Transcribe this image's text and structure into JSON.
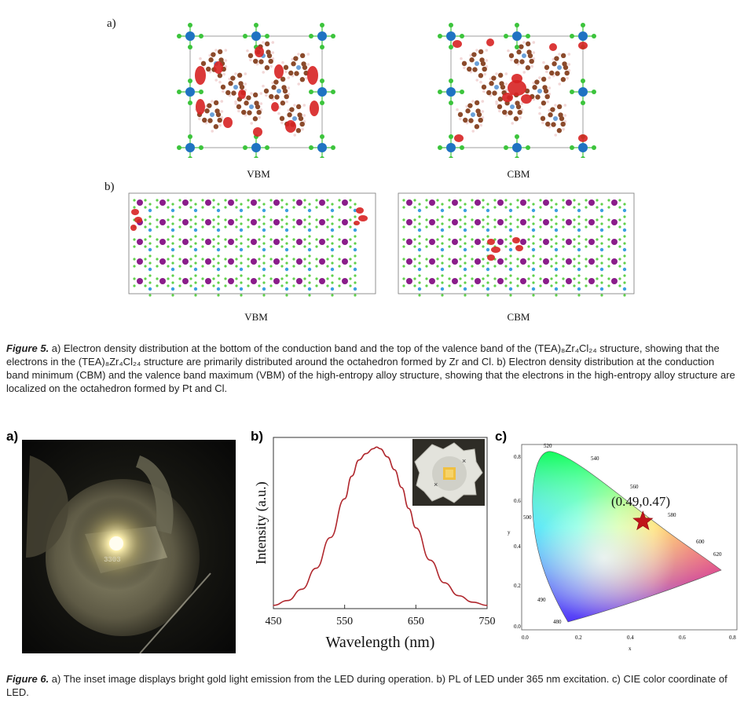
{
  "figure5": {
    "panel_a_label": "a)",
    "panel_b_label": "b)",
    "vbm_label": "VBM",
    "cbm_label": "CBM",
    "caption_prefix": "Figure 5.",
    "caption_text": " a) Electron density distribution at the bottom of the conduction band and the top of the valence band of the (TEA)₈Zr₄Cl₂₄ structure, showing that the electrons in the (TEA)₈Zr₄Cl₂₄ structure are primarily distributed around the octahedron formed by Zr and Cl. b) Electron density distribution at the conduction band minimum (CBM) and the valence band maximum (VBM) of the high-entropy alloy structure, showing that the electrons in the high-entropy alloy structure are localized on the octahedron formed by Pt and Cl."
  },
  "figure6": {
    "panel_a_label": "a)",
    "panel_b_label": "b)",
    "panel_c_label": "c)",
    "led_board_text": "3303",
    "caption_prefix": "Figure 6.",
    "caption_text": " a) The inset image displays bright gold light emission from the LED during operation. b) PL of LED under 365 nm excitation. c) CIE color coordinate of LED.",
    "cie_annotation": "(0.49,0.47)",
    "cie_point": [
      0.49,
      0.47
    ],
    "cie_point_color": "#c0141a"
  },
  "chart_data": [
    {
      "type": "line",
      "xlabel": "Wavelength (nm)",
      "ylabel": "Intensity (a.u.)",
      "xlim": [
        450,
        750
      ],
      "ylim": [
        0,
        1.06
      ],
      "xticks": [
        "450",
        "550",
        "650",
        "750"
      ],
      "x": [
        450,
        470,
        490,
        510,
        530,
        550,
        560,
        570,
        580,
        590,
        595,
        600,
        610,
        620,
        630,
        640,
        650,
        670,
        690,
        710,
        730,
        750
      ],
      "series": [
        {
          "color": "#b0282e",
          "values": [
            0.02,
            0.05,
            0.12,
            0.25,
            0.44,
            0.68,
            0.82,
            0.92,
            0.96,
            0.99,
            1.0,
            0.99,
            0.94,
            0.86,
            0.75,
            0.62,
            0.5,
            0.3,
            0.16,
            0.08,
            0.04,
            0.02
          ]
        }
      ],
      "grid": false
    }
  ]
}
